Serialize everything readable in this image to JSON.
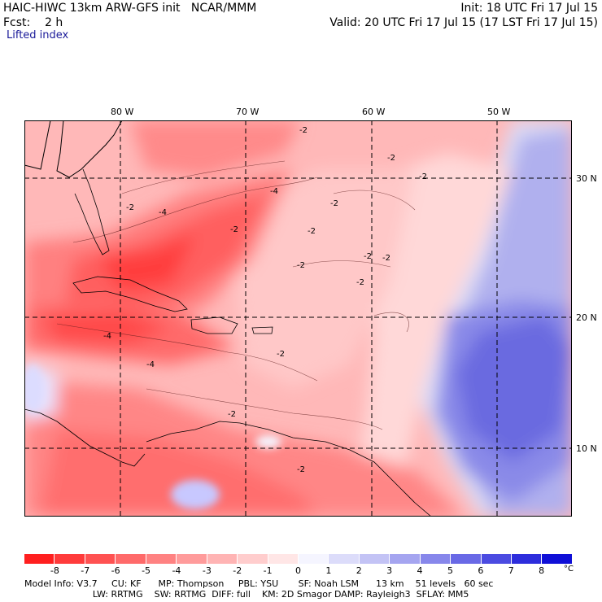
{
  "header": {
    "left_line1": "HAIC-HIWC 13km ARW-GFS init   NCAR/MMM",
    "left_line2": "Fcst:    2 h",
    "right_line1": "Init: 18 UTC Fri 17 Jul 15",
    "right_line2": "Valid: 20 UTC Fri 17 Jul 15 (17 LST Fri 17 Jul 15)",
    "field": "Lifted index"
  },
  "axes": {
    "longitude_labels": [
      "80 W",
      "70 W",
      "60 W",
      "50 W"
    ],
    "latitude_labels": [
      "30 N",
      "20 N",
      "10 N"
    ]
  },
  "contour_labels": [
    "-2",
    "-2",
    "-2",
    "-2",
    "-2",
    "-2",
    "-2",
    "-2",
    "-2",
    "-2",
    "-2",
    "-4",
    "-4",
    "-4",
    "-4",
    "-2",
    "-2",
    "-2"
  ],
  "legend": {
    "unit": "°C",
    "ticks": [
      "-8",
      "-7",
      "-6",
      "-5",
      "-4",
      "-3",
      "-2",
      "-1",
      "0",
      "1",
      "2",
      "3",
      "4",
      "5",
      "6",
      "7",
      "8"
    ],
    "colors": [
      "#ff1f1f",
      "#ff3b3b",
      "#ff5252",
      "#ff6a6a",
      "#ff8282",
      "#ff9b9b",
      "#ffb4b4",
      "#ffcdcd",
      "#ffe6e6",
      "#f5f5ff",
      "#dcdcfa",
      "#c3c3f5",
      "#a5a5f0",
      "#8787eb",
      "#6969e6",
      "#4b4be1",
      "#2d2ddc",
      "#0f0fd7"
    ]
  },
  "model_info": {
    "line1": "Model Info: V3.7     CU: KF      MP: Thompson     PBL: YSU       SF: Noah LSM      13 km    51 levels   60 sec",
    "line2": "                        LW: RRTMG    SW: RRTMG  DIFF: full    KM: 2D Smagor DAMP: Rayleigh3  SFLAY: MM5"
  }
}
